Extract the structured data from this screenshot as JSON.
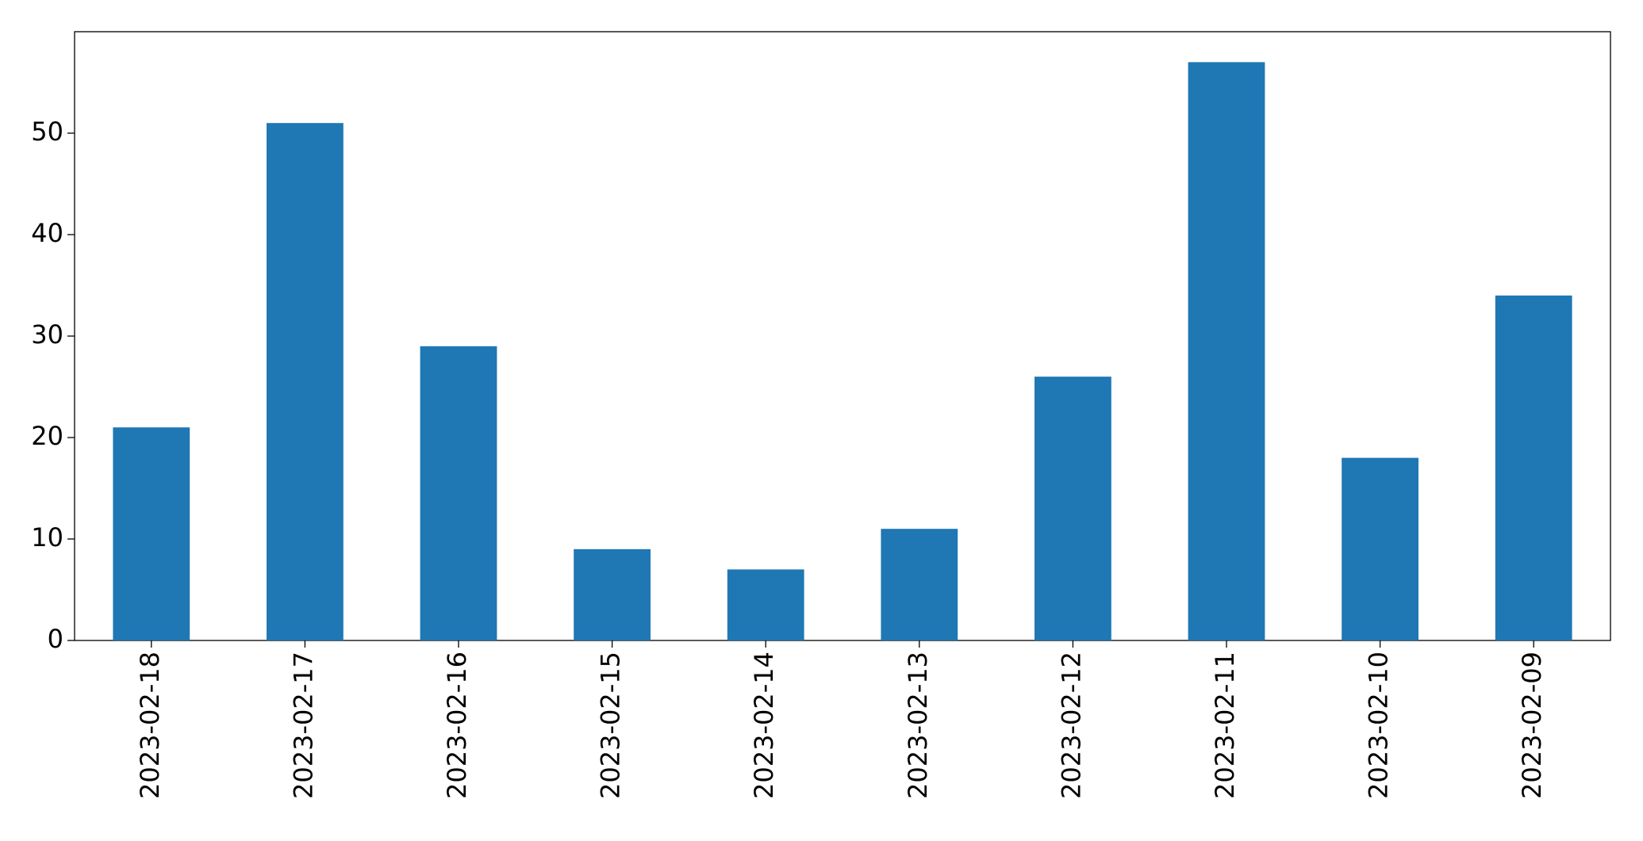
{
  "chart_data": {
    "type": "bar",
    "categories": [
      "2023-02-18",
      "2023-02-17",
      "2023-02-16",
      "2023-02-15",
      "2023-02-14",
      "2023-02-13",
      "2023-02-12",
      "2023-02-11",
      "2023-02-10",
      "2023-02-09"
    ],
    "values": [
      21,
      51,
      29,
      9,
      7,
      11,
      26,
      57,
      18,
      34
    ],
    "color": "#1f77b4",
    "ylim": [
      0,
      60
    ],
    "yticks": [
      0,
      10,
      20,
      30,
      40,
      50
    ],
    "grid": false
  }
}
